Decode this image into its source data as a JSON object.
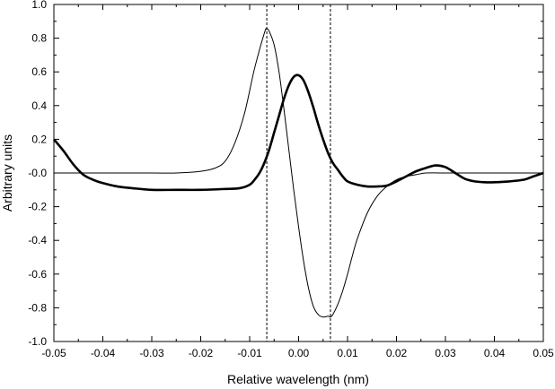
{
  "chart_data": {
    "type": "line",
    "title": "",
    "xlabel": "Relative wavelength  (nm)",
    "ylabel": "Arbitrary units",
    "xlim": [
      -0.05,
      0.05
    ],
    "ylim": [
      -1.0,
      1.0
    ],
    "grid": false,
    "legend": "none",
    "x_ticks": [
      -0.05,
      -0.04,
      -0.03,
      -0.02,
      -0.01,
      0.0,
      0.01,
      0.02,
      0.03,
      0.04,
      0.05
    ],
    "x_tick_labels": [
      "-0.05",
      "-0.04",
      "-0.03",
      "-0.02",
      "-0.01",
      "0.00",
      "0.01",
      "0.02",
      "0.03",
      "0.04",
      "0.05"
    ],
    "y_ticks": [
      1.0,
      0.8,
      0.6,
      0.4,
      0.2,
      0.0,
      -0.2,
      -0.4,
      -0.6,
      -0.8,
      -1.0
    ],
    "y_tick_labels": [
      "1.0",
      "0.8",
      "0.6",
      "0.4",
      "0.2",
      "-0.0",
      "-0.2",
      "-0.4",
      "-0.6",
      "-0.8",
      "-1.0"
    ],
    "vertical_dashed_lines_x": [
      -0.0065,
      0.0065
    ],
    "series": [
      {
        "style": "thin",
        "color": "#000000",
        "x": [
          -0.05,
          -0.04,
          -0.03,
          -0.025,
          -0.02,
          -0.017,
          -0.015,
          -0.013,
          -0.011,
          -0.009,
          -0.007,
          -0.0065,
          -0.006,
          -0.005,
          -0.004,
          -0.003,
          -0.002,
          -0.001,
          0.0,
          0.001,
          0.002,
          0.003,
          0.004,
          0.005,
          0.006,
          0.0065,
          0.007,
          0.008,
          0.009,
          0.01,
          0.011,
          0.012,
          0.014,
          0.016,
          0.018,
          0.02,
          0.022,
          0.024,
          0.026,
          0.03,
          0.04,
          0.05
        ],
        "y": [
          0.0,
          0.0,
          0.0,
          0.0,
          0.01,
          0.03,
          0.07,
          0.18,
          0.36,
          0.62,
          0.83,
          0.855,
          0.84,
          0.76,
          0.6,
          0.38,
          0.14,
          -0.1,
          -0.32,
          -0.52,
          -0.68,
          -0.79,
          -0.84,
          -0.855,
          -0.85,
          -0.855,
          -0.84,
          -0.78,
          -0.7,
          -0.6,
          -0.49,
          -0.39,
          -0.24,
          -0.14,
          -0.08,
          -0.04,
          -0.02,
          -0.01,
          0.0,
          0.0,
          0.0,
          0.0
        ]
      },
      {
        "style": "thick",
        "color": "#000000",
        "x": [
          -0.05,
          -0.048,
          -0.046,
          -0.044,
          -0.042,
          -0.04,
          -0.037,
          -0.034,
          -0.03,
          -0.025,
          -0.02,
          -0.015,
          -0.012,
          -0.01,
          -0.009,
          -0.008,
          -0.007,
          -0.006,
          -0.005,
          -0.004,
          -0.003,
          -0.002,
          -0.001,
          0.0,
          0.001,
          0.002,
          0.003,
          0.004,
          0.005,
          0.006,
          0.007,
          0.008,
          0.009,
          0.01,
          0.012,
          0.014,
          0.016,
          0.018,
          0.02,
          0.022,
          0.024,
          0.026,
          0.028,
          0.03,
          0.032,
          0.034,
          0.036,
          0.038,
          0.04,
          0.043,
          0.046,
          0.048,
          0.05
        ],
        "y": [
          0.2,
          0.13,
          0.05,
          -0.01,
          -0.04,
          -0.06,
          -0.08,
          -0.09,
          -0.1,
          -0.1,
          -0.1,
          -0.095,
          -0.09,
          -0.07,
          -0.04,
          0.0,
          0.06,
          0.14,
          0.24,
          0.34,
          0.44,
          0.52,
          0.57,
          0.58,
          0.55,
          0.48,
          0.39,
          0.29,
          0.2,
          0.12,
          0.06,
          0.02,
          -0.02,
          -0.05,
          -0.07,
          -0.08,
          -0.08,
          -0.075,
          -0.05,
          -0.02,
          0.01,
          0.03,
          0.045,
          0.035,
          0.0,
          -0.035,
          -0.05,
          -0.055,
          -0.055,
          -0.05,
          -0.04,
          -0.02,
          0.0
        ]
      }
    ]
  }
}
